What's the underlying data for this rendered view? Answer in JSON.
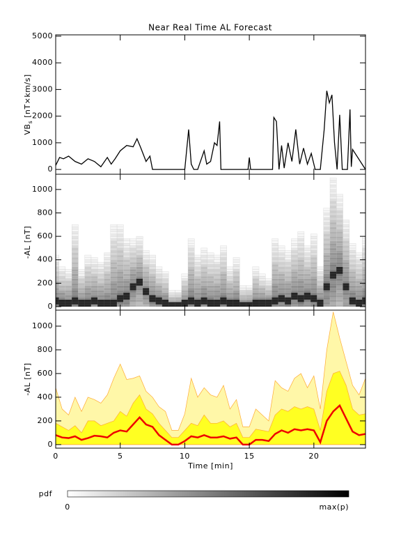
{
  "chart_data": [
    {
      "type": "line",
      "title": "Near Real Time AL Forecast",
      "ylabel": {
        "main": "VB",
        "sub": "s",
        "unit": " [nT×km/s]"
      },
      "xlim": [
        0,
        24
      ],
      "xticks": [
        0,
        5,
        10,
        15,
        20
      ],
      "ylim": [
        -180,
        5050
      ],
      "yticks": [
        0,
        1000,
        2000,
        3000,
        4000,
        5000
      ],
      "color": "#000000",
      "x": [
        0,
        0.3,
        0.6,
        1,
        1.5,
        2,
        2.5,
        3,
        3.5,
        4,
        4.3,
        4.6,
        5,
        5.5,
        6,
        6.3,
        6.6,
        7,
        7.3,
        7.5,
        8,
        9,
        10,
        10.3,
        10.5,
        10.7,
        11,
        11.5,
        11.7,
        12,
        12.3,
        12.5,
        12.7,
        12.8,
        12.9,
        13,
        14,
        14.9,
        15,
        15.1,
        16,
        16.8,
        16.9,
        17.1,
        17.3,
        17.5,
        17.7,
        18,
        18.3,
        18.6,
        18.9,
        19.2,
        19.5,
        19.8,
        20.1,
        20.5,
        20.8,
        21,
        21.2,
        21.4,
        21.6,
        21.8,
        22,
        22.2,
        22.4,
        22.6,
        22.8,
        22.9,
        23,
        24
      ],
      "values": [
        150,
        450,
        400,
        500,
        300,
        200,
        400,
        300,
        100,
        450,
        200,
        400,
        700,
        900,
        850,
        1150,
        800,
        300,
        500,
        0,
        0,
        0,
        0,
        1500,
        200,
        0,
        0,
        700,
        200,
        300,
        1000,
        900,
        1800,
        0,
        0,
        0,
        0,
        0,
        450,
        0,
        0,
        0,
        1950,
        1800,
        0,
        900,
        50,
        1000,
        300,
        1500,
        200,
        800,
        200,
        600,
        0,
        0,
        1500,
        2950,
        2500,
        2800,
        1000,
        0,
        2050,
        0,
        0,
        0,
        2250,
        100,
        750,
        0
      ]
    },
    {
      "type": "heatmap",
      "ylabel": "-AL [nT]",
      "xlim": [
        0,
        24
      ],
      "xticks": [
        0,
        5,
        10,
        15,
        20
      ],
      "ylim": [
        -30,
        1130
      ],
      "yticks": [
        0,
        200,
        400,
        600,
        800,
        1000
      ],
      "x": [
        0,
        0.5,
        1,
        1.5,
        2,
        2.5,
        3,
        3.5,
        4,
        4.5,
        5,
        5.5,
        6,
        6.5,
        7,
        7.5,
        8,
        8.5,
        9,
        9.5,
        10,
        10.5,
        11,
        11.5,
        12,
        12.5,
        13,
        13.5,
        14,
        14.5,
        15,
        15.5,
        16,
        16.5,
        17,
        17.5,
        18,
        18.5,
        19,
        19.5,
        20,
        20.5,
        21,
        21.5,
        22,
        22.5,
        23,
        23.5,
        24
      ],
      "mode": [
        40,
        20,
        20,
        40,
        20,
        20,
        40,
        20,
        20,
        20,
        60,
        80,
        160,
        200,
        120,
        60,
        40,
        20,
        0,
        0,
        20,
        40,
        20,
        40,
        20,
        20,
        40,
        20,
        20,
        0,
        0,
        20,
        20,
        20,
        40,
        60,
        40,
        80,
        60,
        80,
        60,
        20,
        160,
        260,
        300,
        160,
        40,
        20,
        40
      ],
      "upper": [
        420,
        320,
        300,
        680,
        300,
        420,
        400,
        360,
        440,
        680,
        680,
        560,
        560,
        580,
        460,
        420,
        320,
        280,
        120,
        120,
        260,
        560,
        420,
        480,
        440,
        420,
        500,
        320,
        400,
        160,
        160,
        320,
        260,
        220,
        560,
        500,
        460,
        560,
        620,
        500,
        600,
        320,
        820,
        1080,
        940,
        720,
        520,
        440,
        580
      ]
    },
    {
      "type": "area",
      "ylabel": "-AL [nT]",
      "xlabel": "Time [min]",
      "xlim": [
        0,
        24
      ],
      "xticks": [
        0,
        5,
        10,
        15,
        20
      ],
      "ylim": [
        -30,
        1135
      ],
      "yticks": [
        0,
        200,
        400,
        600,
        800,
        1000
      ],
      "outer_color": "#fff7a8",
      "inner_color": "#ffff22",
      "edge_color": "#ffaa33",
      "median_color": "#ee0000",
      "x": [
        0,
        0.5,
        1,
        1.5,
        2,
        2.5,
        3,
        3.5,
        4,
        4.5,
        5,
        5.5,
        6,
        6.5,
        7,
        7.5,
        8,
        8.5,
        9,
        9.5,
        10,
        10.5,
        11,
        11.5,
        12,
        12.5,
        13,
        13.5,
        14,
        14.5,
        15,
        15.5,
        16,
        16.5,
        17,
        17.5,
        18,
        18.5,
        19,
        19.5,
        20,
        20.5,
        21,
        21.5,
        22,
        22.5,
        23,
        23.5,
        24
      ],
      "outer": [
        480,
        300,
        250,
        400,
        280,
        400,
        380,
        350,
        420,
        560,
        680,
        550,
        560,
        580,
        450,
        400,
        320,
        280,
        120,
        120,
        260,
        560,
        400,
        480,
        420,
        400,
        500,
        300,
        380,
        150,
        150,
        300,
        250,
        200,
        540,
        480,
        450,
        560,
        600,
        480,
        580,
        300,
        800,
        1120,
        900,
        700,
        500,
        420,
        560
      ],
      "inner": [
        180,
        150,
        120,
        160,
        100,
        200,
        200,
        160,
        180,
        200,
        280,
        240,
        350,
        420,
        300,
        260,
        180,
        120,
        60,
        60,
        120,
        180,
        160,
        250,
        180,
        180,
        200,
        150,
        180,
        60,
        60,
        130,
        120,
        110,
        250,
        300,
        280,
        320,
        300,
        320,
        300,
        120,
        450,
        600,
        620,
        500,
        300,
        250,
        260
      ],
      "median": [
        80,
        60,
        55,
        70,
        40,
        55,
        75,
        70,
        60,
        100,
        120,
        110,
        170,
        230,
        170,
        150,
        80,
        40,
        0,
        0,
        30,
        70,
        60,
        80,
        60,
        60,
        70,
        50,
        60,
        0,
        0,
        40,
        40,
        30,
        90,
        120,
        100,
        130,
        120,
        130,
        120,
        20,
        200,
        280,
        330,
        220,
        110,
        80,
        90
      ]
    }
  ],
  "colorbar": {
    "label": "pdf",
    "min_label": "0",
    "max_label": "max(p)"
  }
}
